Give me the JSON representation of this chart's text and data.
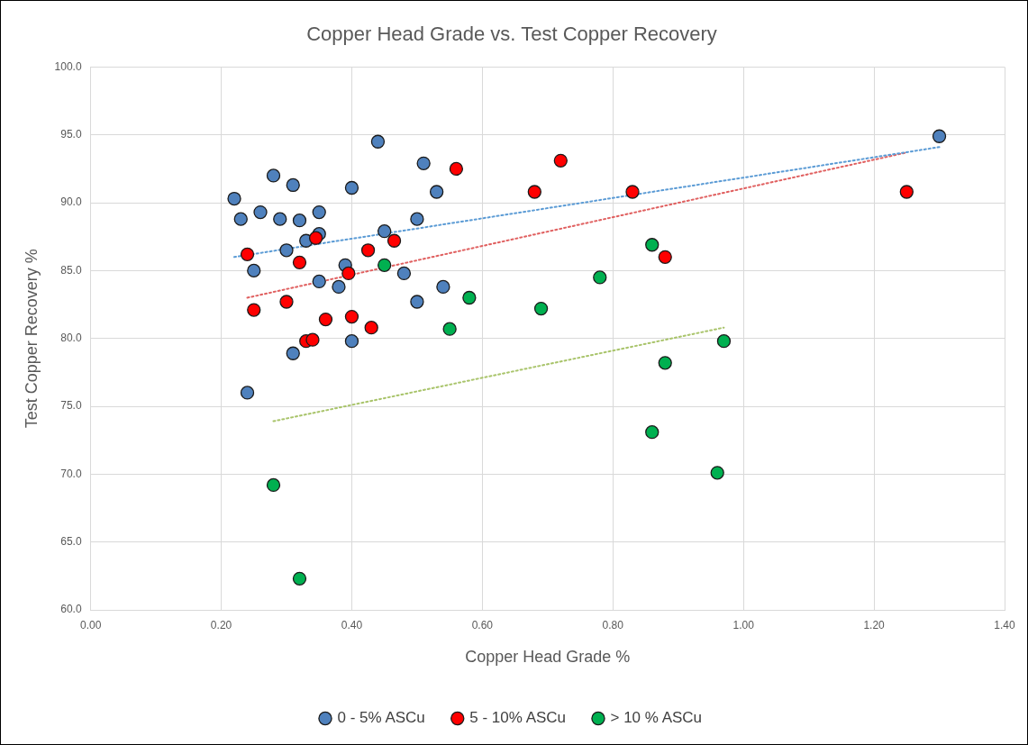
{
  "chart_data": {
    "type": "scatter",
    "title": "Copper Head Grade vs. Test Copper Recovery",
    "xlabel": "Copper Head Grade %",
    "ylabel": "Test Copper Recovery %",
    "xlim": [
      0,
      1.4
    ],
    "xticks": [
      {
        "value": 0,
        "label": "0.00"
      },
      {
        "value": 0.2,
        "label": "0.20"
      },
      {
        "value": 0.4,
        "label": "0.40"
      },
      {
        "value": 0.6,
        "label": "0.60"
      },
      {
        "value": 0.8,
        "label": "0.80"
      },
      {
        "value": 1,
        "label": "1.00"
      },
      {
        "value": 1.2,
        "label": "1.20"
      },
      {
        "value": 1.4,
        "label": "1.40"
      }
    ],
    "ylim": [
      60,
      100
    ],
    "yticks": [
      {
        "value": 60,
        "label": "60.0"
      },
      {
        "value": 65,
        "label": "65.0"
      },
      {
        "value": 70,
        "label": "70.0"
      },
      {
        "value": 75,
        "label": "75.0"
      },
      {
        "value": 80,
        "label": "80.0"
      },
      {
        "value": 85,
        "label": "85.0"
      },
      {
        "value": 90,
        "label": "90.0"
      },
      {
        "value": 95,
        "label": "95.0"
      },
      {
        "value": 100,
        "label": "100.0"
      }
    ],
    "grid": true,
    "legend": "bottom",
    "marker": "circle",
    "series": [
      {
        "name": "0 - 5% ASCu",
        "color": "#4f81bd",
        "x": [
          0.22,
          0.23,
          0.26,
          0.28,
          0.29,
          0.31,
          0.32,
          0.33,
          0.35,
          0.35,
          0.3,
          0.25,
          0.39,
          0.35,
          0.38,
          0.4,
          0.44,
          0.45,
          0.5,
          0.51,
          0.53,
          0.48,
          0.54,
          0.5,
          0.31,
          0.4,
          0.24,
          1.3
        ],
        "values": [
          90.3,
          88.8,
          89.3,
          92.0,
          88.8,
          91.3,
          88.7,
          87.2,
          87.7,
          89.3,
          86.5,
          85.0,
          85.4,
          84.2,
          83.8,
          91.1,
          94.5,
          87.9,
          88.8,
          92.9,
          90.8,
          84.8,
          83.8,
          82.7,
          78.9,
          79.8,
          76.0,
          94.9
        ]
      },
      {
        "name": "5 - 10% ASCu",
        "color": "#ff0000",
        "x": [
          0.24,
          0.25,
          0.3,
          0.32,
          0.345,
          0.36,
          0.33,
          0.34,
          0.395,
          0.4,
          0.425,
          0.43,
          0.465,
          0.56,
          0.68,
          0.72,
          0.83,
          0.88,
          1.25
        ],
        "values": [
          86.2,
          82.1,
          82.7,
          85.6,
          87.4,
          81.4,
          79.8,
          79.9,
          84.8,
          81.6,
          86.5,
          80.8,
          87.2,
          92.5,
          90.8,
          93.1,
          90.8,
          86.0,
          90.8
        ]
      },
      {
        "name": "> 10 % ASCu",
        "color": "#00b050",
        "x": [
          0.45,
          0.55,
          0.58,
          0.69,
          0.78,
          0.86,
          0.88,
          0.97,
          0.86,
          0.96,
          0.28,
          0.32
        ],
        "values": [
          85.4,
          80.7,
          83.0,
          82.2,
          84.5,
          86.9,
          78.2,
          79.8,
          73.1,
          70.1,
          69.2,
          62.3
        ]
      },
      {
        "type": "line",
        "color": "#5b9bd5",
        "line_style": "dotted",
        "marker": "none",
        "x": [
          0.22,
          1.3
        ],
        "values": [
          86.0,
          94.1
        ]
      },
      {
        "type": "line",
        "color": "#e06060",
        "line_style": "dotted",
        "marker": "none",
        "x": [
          0.24,
          1.25
        ],
        "values": [
          83.0,
          93.7
        ]
      },
      {
        "type": "line",
        "color": "#a9c46b",
        "line_style": "dotted",
        "marker": "none",
        "x": [
          0.28,
          0.97
        ],
        "values": [
          73.9,
          80.8
        ]
      }
    ]
  }
}
